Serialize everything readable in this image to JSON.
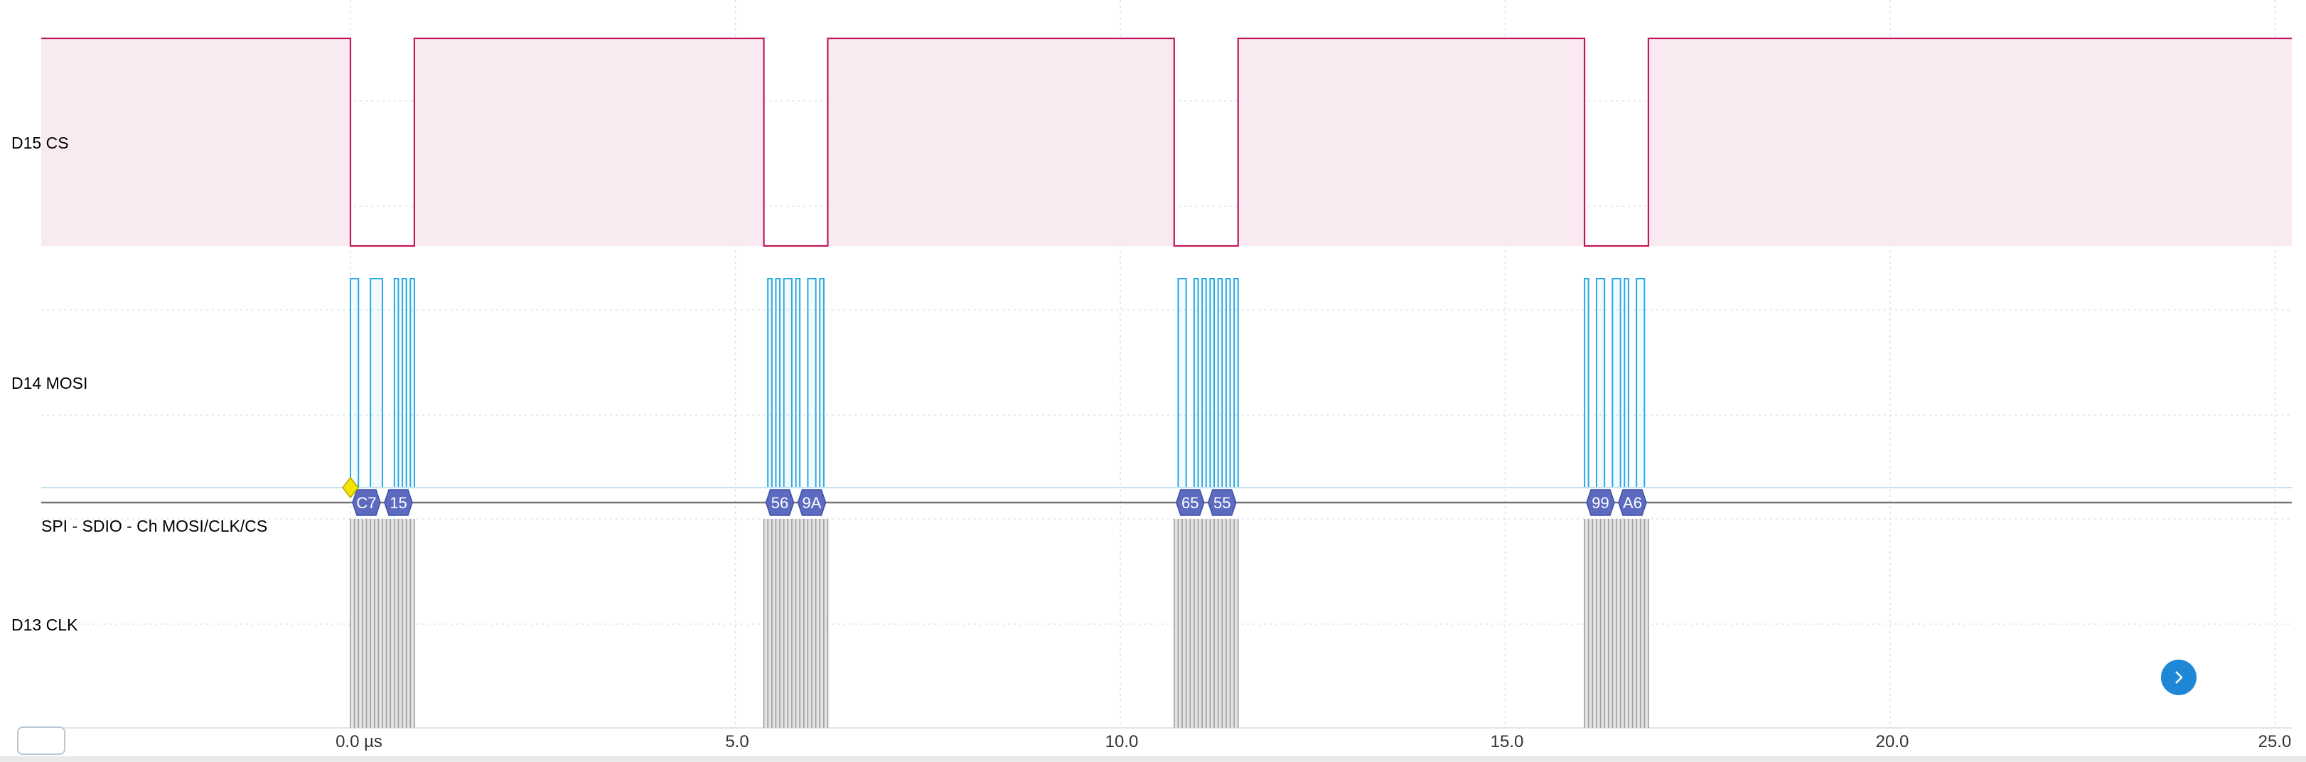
{
  "channels": {
    "cs": {
      "label": "D15 CS",
      "color": "#c2185b",
      "fill": "#f9eaf2"
    },
    "mosi": {
      "label": "D14 MOSI",
      "color": "#29a9e0"
    },
    "decoder": {
      "label": "SPI - SDIO - Ch MOSI/CLK/CS",
      "color": "#29a9e0"
    },
    "clk": {
      "label": "D13 CLK",
      "color": "#9e9e9e"
    }
  },
  "colors": {
    "packet": "#5c6bc0",
    "trigger": "#f2e600",
    "grid": "#cfe3ee",
    "nav": "#1e88d6"
  },
  "time_axis": {
    "unit": "µs",
    "tick_labels": [
      "0.0 µs",
      "5.0",
      "10.0",
      "15.0",
      "20.0",
      "25.0"
    ],
    "range_us": [
      -4.0,
      25.2
    ]
  },
  "chart_data": {
    "type": "line",
    "x_unit": "µs",
    "cs_low_intervals": [
      [
        0.0,
        0.83
      ],
      [
        5.37,
        6.2
      ],
      [
        10.7,
        11.53
      ],
      [
        16.03,
        16.86
      ]
    ],
    "transactions": [
      {
        "start": 0.0,
        "bytes": [
          "C7",
          "15"
        ]
      },
      {
        "start": 5.37,
        "bytes": [
          "56",
          "9A"
        ]
      },
      {
        "start": 10.7,
        "bytes": [
          "65",
          "55"
        ]
      },
      {
        "start": 16.03,
        "bytes": [
          "99",
          "A6"
        ]
      }
    ],
    "clock_bits_per_byte": 8,
    "bit_period_us": 0.0519,
    "trigger_time_us": 0.0
  },
  "nav": {
    "icon": "chevron-right-icon"
  },
  "zoom": {
    "icon": "caret-up-icon"
  }
}
